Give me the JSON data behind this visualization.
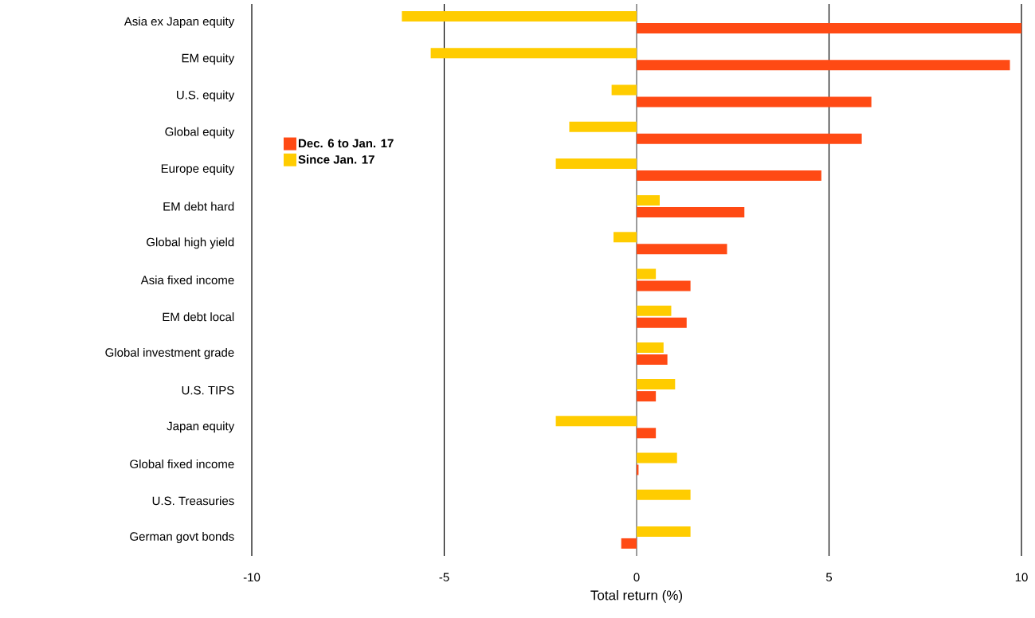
{
  "chart_data": {
    "type": "bar",
    "orientation": "horizontal",
    "xlabel": "Total return (%)",
    "categories": [
      "Asia ex Japan equity",
      "EM equity",
      "U.S. equity",
      "Global equity",
      "Europe equity",
      "EM debt hard",
      "Global high yield",
      "Asia fixed income",
      "EM debt local",
      "Global investment grade",
      "U.S. TIPS",
      "Japan equity",
      "Global fixed income",
      "U.S. Treasuries",
      "German govt bonds"
    ],
    "series": [
      {
        "name": "Dec. 6  to Jan. 17",
        "color": "#ff4a14",
        "values": [
          10.0,
          9.7,
          6.1,
          5.85,
          4.8,
          2.8,
          2.35,
          1.4,
          1.3,
          0.8,
          0.5,
          0.5,
          0.05,
          null,
          -0.4
        ]
      },
      {
        "name": "Since Jan. 17",
        "color": "#ffcc00",
        "values": [
          -6.1,
          -5.35,
          -0.65,
          -1.75,
          -2.1,
          0.6,
          -0.6,
          0.5,
          0.9,
          0.7,
          1.0,
          -2.1,
          1.05,
          1.4,
          1.4
        ]
      }
    ],
    "xlim": [
      -10,
      10
    ],
    "xticks": [
      -10,
      -5,
      0,
      5,
      10
    ],
    "grid": "x",
    "legend": "left"
  }
}
